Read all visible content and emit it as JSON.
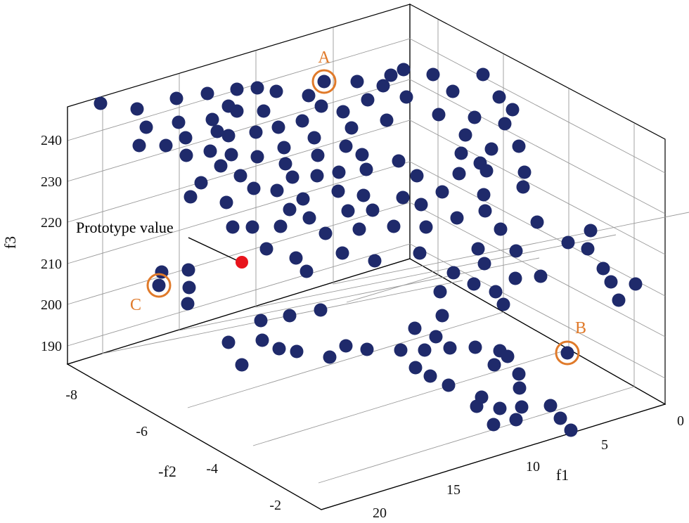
{
  "chart_data": {
    "type": "scatter",
    "title": "",
    "xlabel": "f1",
    "ylabel": "-f2",
    "zlabel": "f3",
    "x_ticks": [
      "0",
      "5",
      "10",
      "15",
      "20"
    ],
    "y_ticks": [
      "-8",
      "-6",
      "-4",
      "-2"
    ],
    "z_ticks": [
      "190",
      "200",
      "210",
      "220",
      "230",
      "240"
    ],
    "grid": true,
    "point_color": "#1f2a6b",
    "highlight_color": "#e07a2a",
    "prototype_color": "#e8141c",
    "prototype": {
      "label": "Prototype value"
    },
    "highlighted": [
      {
        "label": "A"
      },
      {
        "label": "B"
      },
      {
        "label": "C"
      }
    ],
    "point_count": 150
  }
}
